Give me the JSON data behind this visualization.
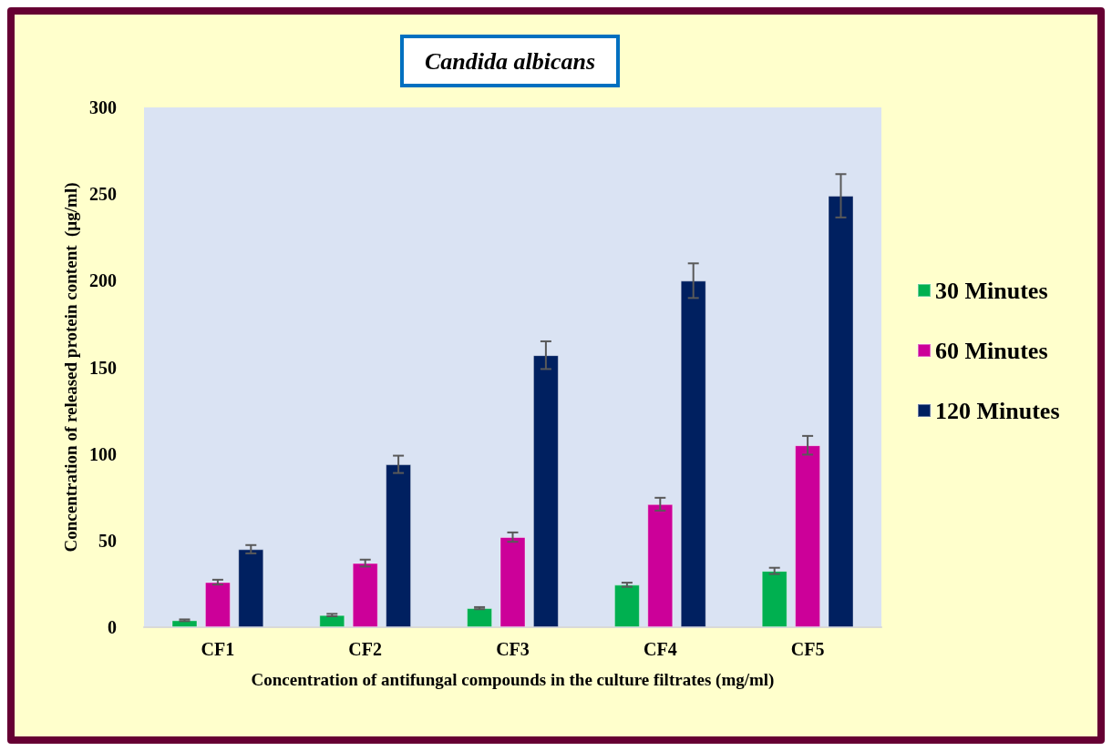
{
  "chart_data": {
    "type": "bar",
    "title": "Candida albicans",
    "xlabel": "Concentration of antifungal compounds in the culture filtrates (mg/ml)",
    "ylabel": "Concentration of released protein content  (µg/ml)",
    "categories": [
      "CF1",
      "CF2",
      "CF3",
      "CF4",
      "CF5"
    ],
    "series": [
      {
        "name": "30 Minutes",
        "color": "#00b050",
        "values": [
          4,
          7,
          11,
          24.5,
          32.5
        ],
        "errors": [
          0.5,
          0.7,
          0.6,
          1.2,
          1.8
        ]
      },
      {
        "name": "60 Minutes",
        "color": "#cc0099",
        "values": [
          26,
          37,
          52,
          71,
          105
        ],
        "errors": [
          1.4,
          2,
          2.7,
          3.7,
          5.4
        ]
      },
      {
        "name": "120 Minutes",
        "color": "#002060",
        "values": [
          45,
          94,
          157,
          200,
          249
        ],
        "errors": [
          2.4,
          5,
          8,
          10,
          12.5
        ]
      }
    ],
    "ylim": [
      0,
      300
    ],
    "yticks": [
      0,
      50,
      100,
      150,
      200,
      250,
      300
    ],
    "grid": false,
    "legend": "right"
  }
}
